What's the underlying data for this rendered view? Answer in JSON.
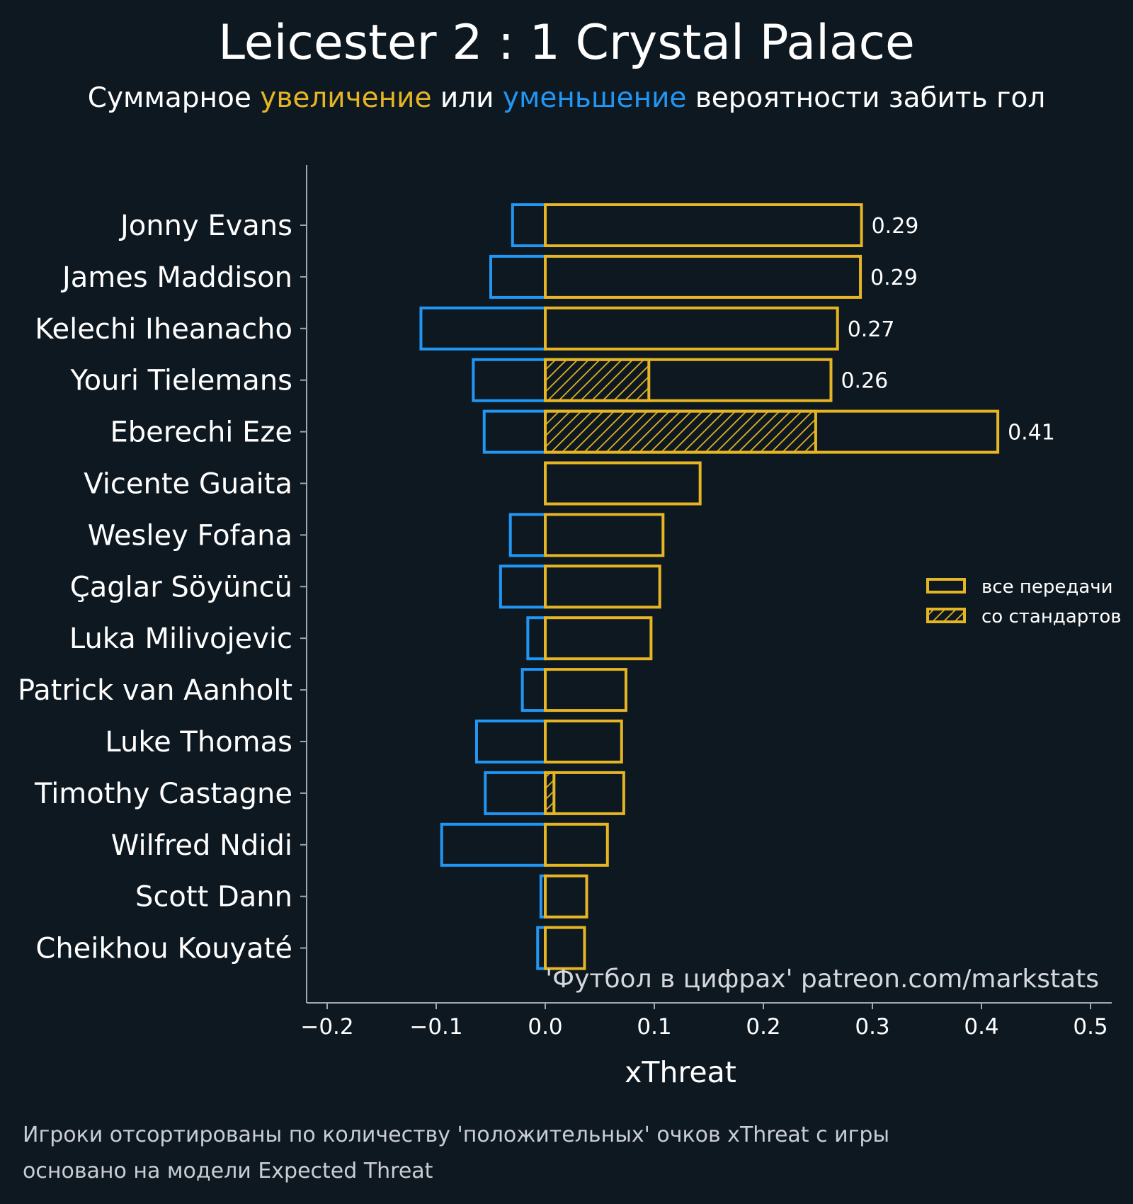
{
  "chart_data": {
    "type": "bar",
    "orientation": "horizontal",
    "title": "Leicester 2 : 1 Crystal Palace",
    "subtitle": {
      "prefix": "Суммарное ",
      "positive_word": "увеличение",
      "middle": " или ",
      "negative_word": "уменьшение",
      "suffix": " вероятности забить гол"
    },
    "xlabel": "xThreat",
    "xlim": [
      -0.22,
      0.52
    ],
    "xticks": [
      -0.2,
      -0.1,
      0.0,
      0.1,
      0.2,
      0.3,
      0.4,
      0.5
    ],
    "xtick_labels": [
      "−0.2",
      "−0.1",
      "0.0",
      "0.1",
      "0.2",
      "0.3",
      "0.4",
      "0.5"
    ],
    "categories": [
      "Jonny Evans",
      "James Maddison",
      "Kelechi Iheanacho",
      "Youri Tielemans",
      "Eberechi Eze",
      "Vicente Guaita",
      "Wesley Fofana",
      "Çaglar Söyüncü",
      "Luka Milivojevic",
      "Patrick van Aanholt",
      "Luke Thomas",
      "Timothy Castagne",
      "Wilfred Ndidi",
      "Scott Dann",
      "Cheikhou Kouyaté"
    ],
    "series": [
      {
        "name": "все передачи",
        "kind": "positive",
        "color": "#e5b523",
        "values": [
          0.29,
          0.289,
          0.268,
          0.262,
          0.415,
          0.142,
          0.108,
          0.105,
          0.097,
          0.074,
          0.07,
          0.072,
          0.057,
          0.038,
          0.036
        ]
      },
      {
        "name": "со стандартов",
        "kind": "set_pieces",
        "color": "#e5b523",
        "values": [
          0,
          0,
          0,
          0.095,
          0.248,
          0,
          0,
          0,
          0,
          0,
          0,
          0.008,
          0,
          0,
          0
        ]
      },
      {
        "name": "negative",
        "kind": "negative",
        "color": "#2196f3",
        "values": [
          -0.03,
          -0.05,
          -0.114,
          -0.066,
          -0.056,
          0,
          -0.032,
          -0.041,
          -0.016,
          -0.021,
          -0.063,
          -0.055,
          -0.095,
          -0.004,
          -0.007
        ]
      }
    ],
    "value_labels": [
      "0.29",
      "0.29",
      "0.27",
      "0.26",
      "0.41",
      "",
      "",
      "",
      "",
      "",
      "",
      "",
      "",
      "",
      ""
    ],
    "legend": {
      "position": "right",
      "items": [
        "все передачи",
        "со стандартов"
      ]
    },
    "watermark": "'Футбол в цифрах' patreon.com/markstats",
    "footnotes": [
      "Игроки отсортированы по количеству 'положительных' очков xThreat с игры",
      "основано на модели Expected Threat"
    ]
  },
  "colors": {
    "background": "#0e1821",
    "positive": "#e5b523",
    "negative": "#2196f3",
    "axis": "#a0a8ae"
  }
}
